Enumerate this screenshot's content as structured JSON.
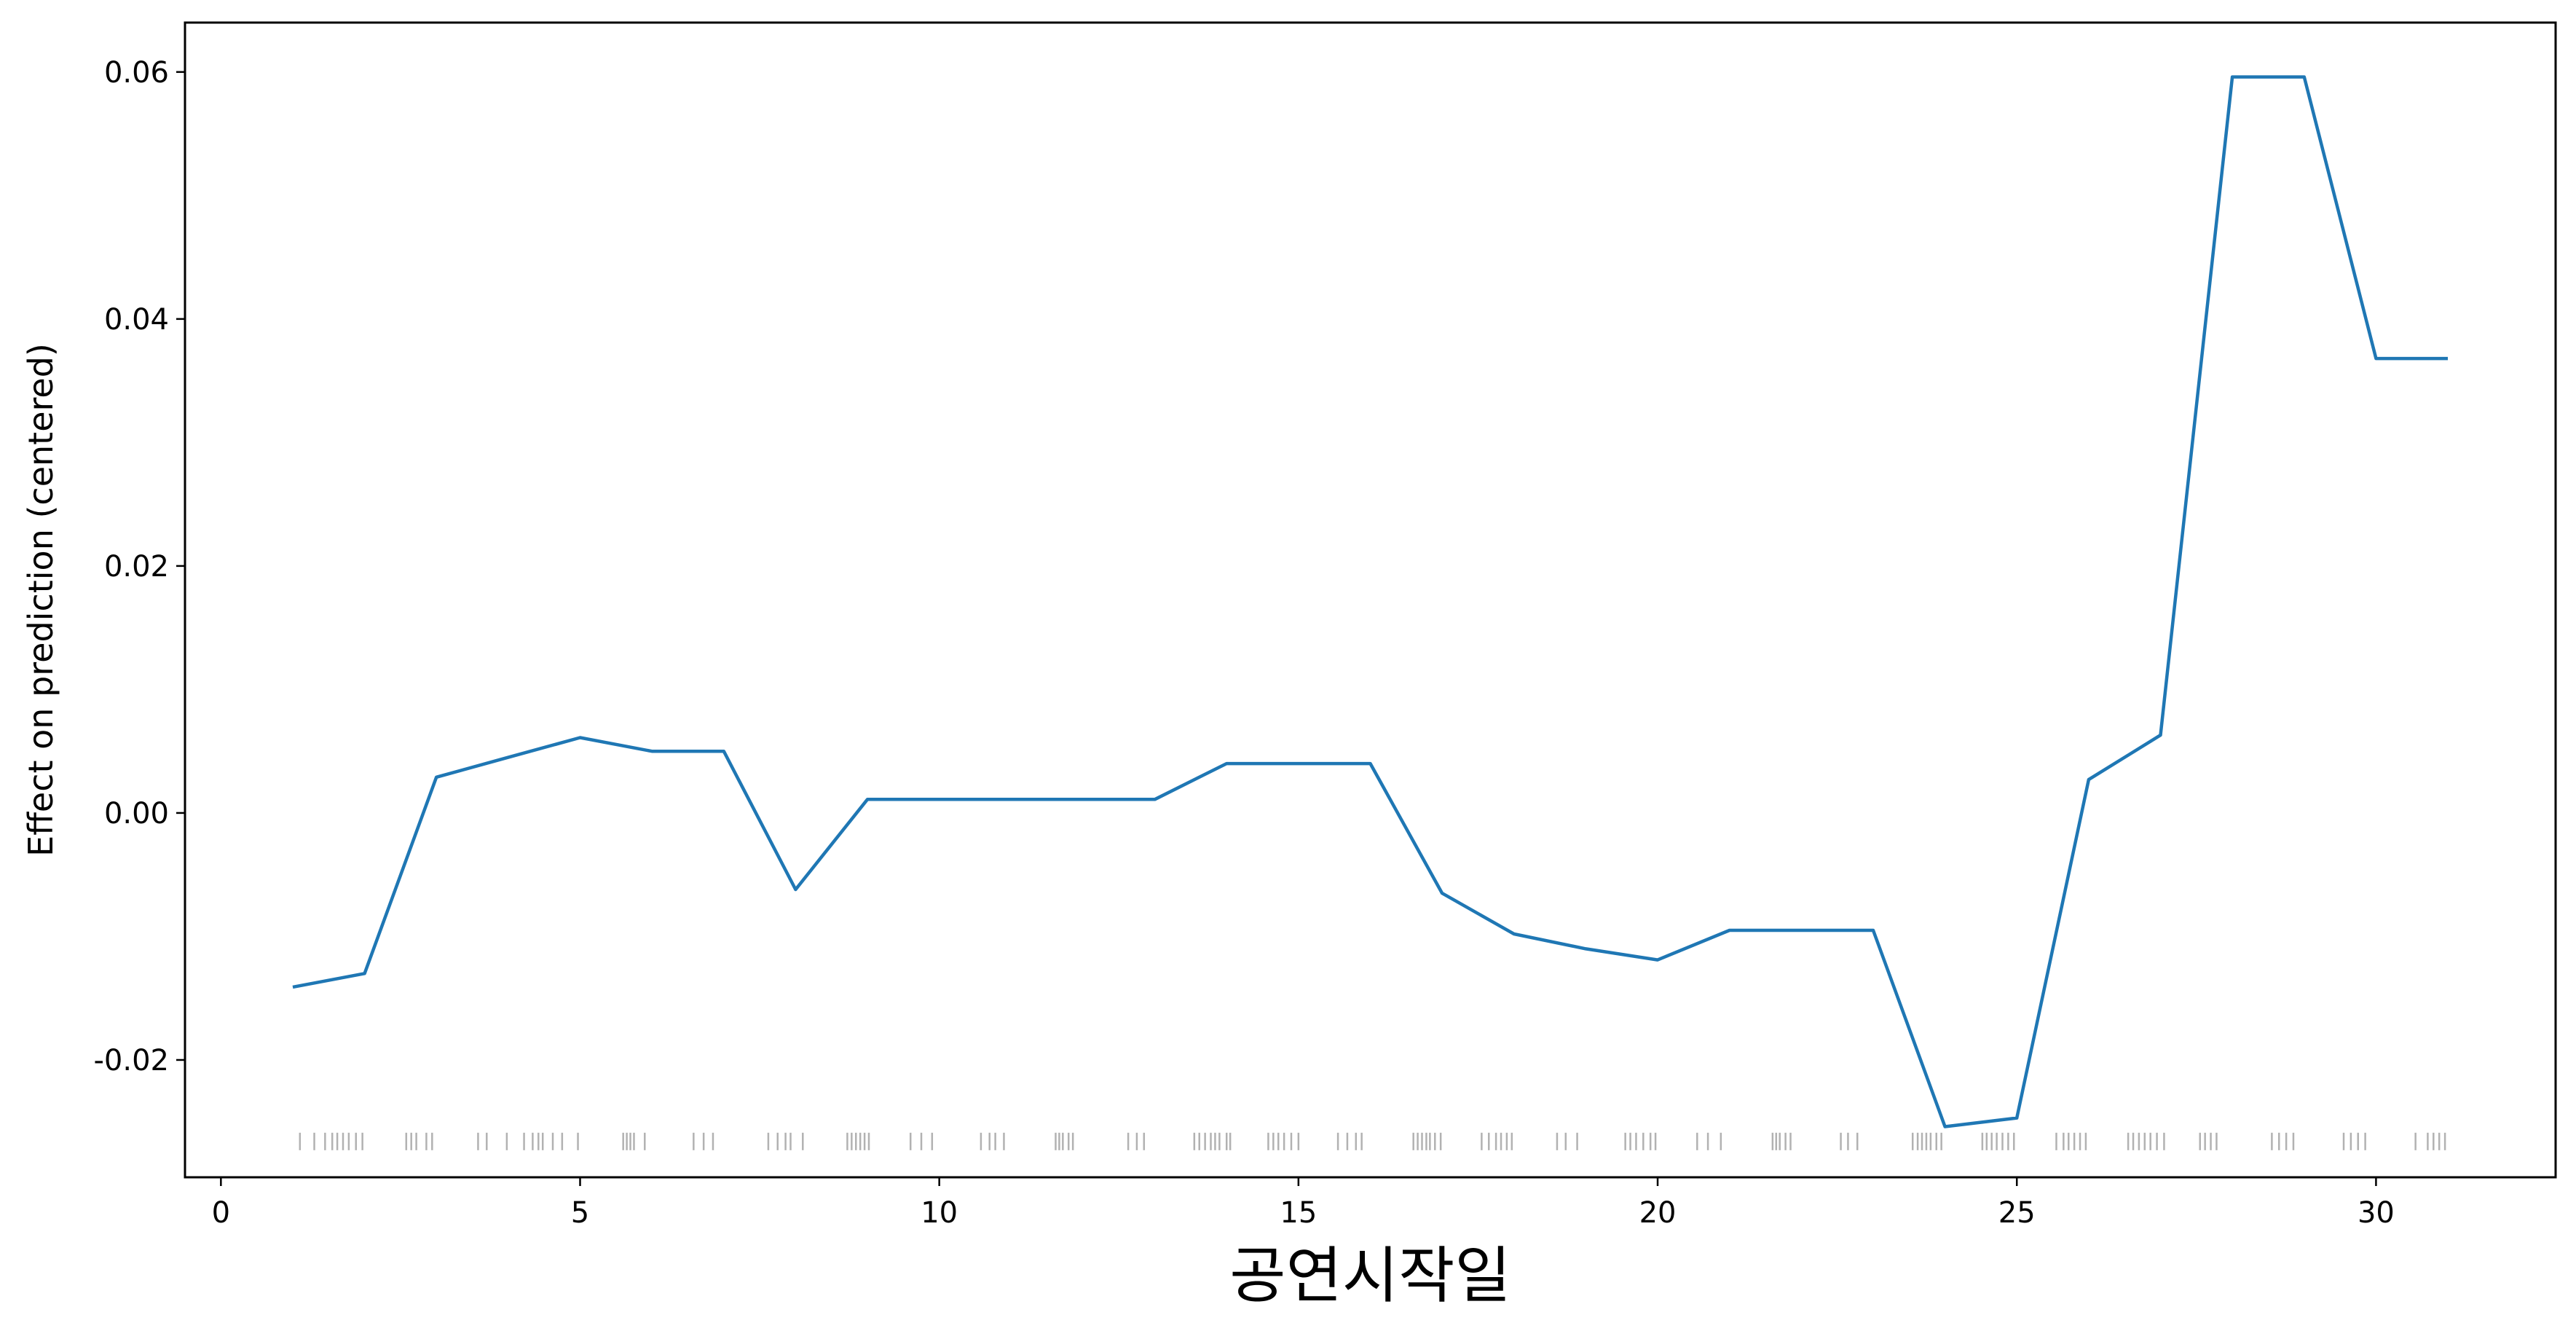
{
  "chart_data": {
    "type": "line",
    "title": "",
    "xlabel": "공연시작일",
    "ylabel": "Effect on prediction (centered)",
    "xlim": [
      -0.5,
      32.5
    ],
    "ylim": [
      -0.0295,
      0.064
    ],
    "xticks": [
      0,
      5,
      10,
      15,
      20,
      25,
      30
    ],
    "yticks": [
      -0.02,
      0.0,
      0.02,
      0.04,
      0.06
    ],
    "ytick_labels": [
      "-0.02",
      "0.00",
      "0.02",
      "0.04",
      "0.06"
    ],
    "grid": false,
    "legend": null,
    "colors": {
      "line": "#1f77b4",
      "rug": "#555555",
      "axes": "#000000"
    },
    "series": [
      {
        "x": [
          1,
          2,
          3,
          4,
          5,
          6,
          7,
          8,
          9,
          10,
          11,
          12,
          13,
          14,
          15,
          16,
          17,
          18,
          19,
          20,
          21,
          22,
          23,
          24,
          25,
          26,
          27,
          28,
          29,
          30,
          31
        ],
        "values": [
          -0.0141,
          -0.013,
          0.0029,
          0.0045,
          0.0061,
          0.005,
          0.005,
          -0.0062,
          0.0011,
          0.0011,
          0.0011,
          0.0011,
          0.0011,
          0.004,
          0.004,
          0.004,
          -0.0065,
          -0.0098,
          -0.011,
          -0.0119,
          -0.0095,
          -0.0095,
          -0.0095,
          -0.0254,
          -0.0247,
          0.0027,
          0.0063,
          0.0596,
          0.0596,
          0.0368,
          0.0368
        ]
      }
    ],
    "rug": {
      "y": -0.0266,
      "x": [
        1.1,
        1.3,
        1.45,
        1.55,
        1.62,
        1.7,
        1.78,
        1.88,
        1.97,
        2.58,
        2.65,
        2.72,
        2.86,
        2.94,
        3.58,
        3.7,
        3.98,
        4.22,
        4.34,
        4.42,
        4.48,
        4.62,
        4.75,
        4.97,
        5.6,
        5.65,
        5.7,
        5.75,
        5.9,
        6.58,
        6.72,
        6.85,
        7.62,
        7.75,
        7.86,
        7.93,
        8.1,
        8.72,
        8.78,
        8.84,
        8.9,
        8.96,
        9.02,
        9.6,
        9.75,
        9.9,
        10.58,
        10.7,
        10.78,
        10.9,
        11.62,
        11.67,
        11.72,
        11.8,
        11.86,
        12.63,
        12.75,
        12.85,
        13.55,
        13.62,
        13.7,
        13.78,
        13.84,
        13.9,
        14.0,
        14.05,
        14.58,
        14.65,
        14.72,
        14.8,
        14.9,
        15.0,
        15.55,
        15.68,
        15.8,
        15.88,
        16.6,
        16.66,
        16.72,
        16.78,
        16.83,
        16.9,
        16.98,
        17.55,
        17.65,
        17.75,
        17.82,
        17.9,
        17.97,
        18.6,
        18.72,
        18.88,
        19.55,
        19.62,
        19.7,
        19.8,
        19.9,
        19.97,
        20.55,
        20.7,
        20.88,
        21.6,
        21.65,
        21.7,
        21.78,
        21.85,
        22.55,
        22.65,
        22.78,
        23.55,
        23.62,
        23.68,
        23.74,
        23.8,
        23.88,
        23.95,
        24.52,
        24.58,
        24.65,
        24.72,
        24.8,
        24.88,
        24.96,
        25.55,
        25.65,
        25.72,
        25.8,
        25.88,
        25.96,
        26.55,
        26.62,
        26.7,
        26.78,
        26.86,
        26.95,
        27.05,
        27.55,
        27.62,
        27.7,
        27.78,
        28.55,
        28.65,
        28.75,
        28.85,
        29.55,
        29.65,
        29.75,
        29.85,
        30.55,
        30.72,
        30.8,
        30.88,
        30.96
      ]
    }
  }
}
